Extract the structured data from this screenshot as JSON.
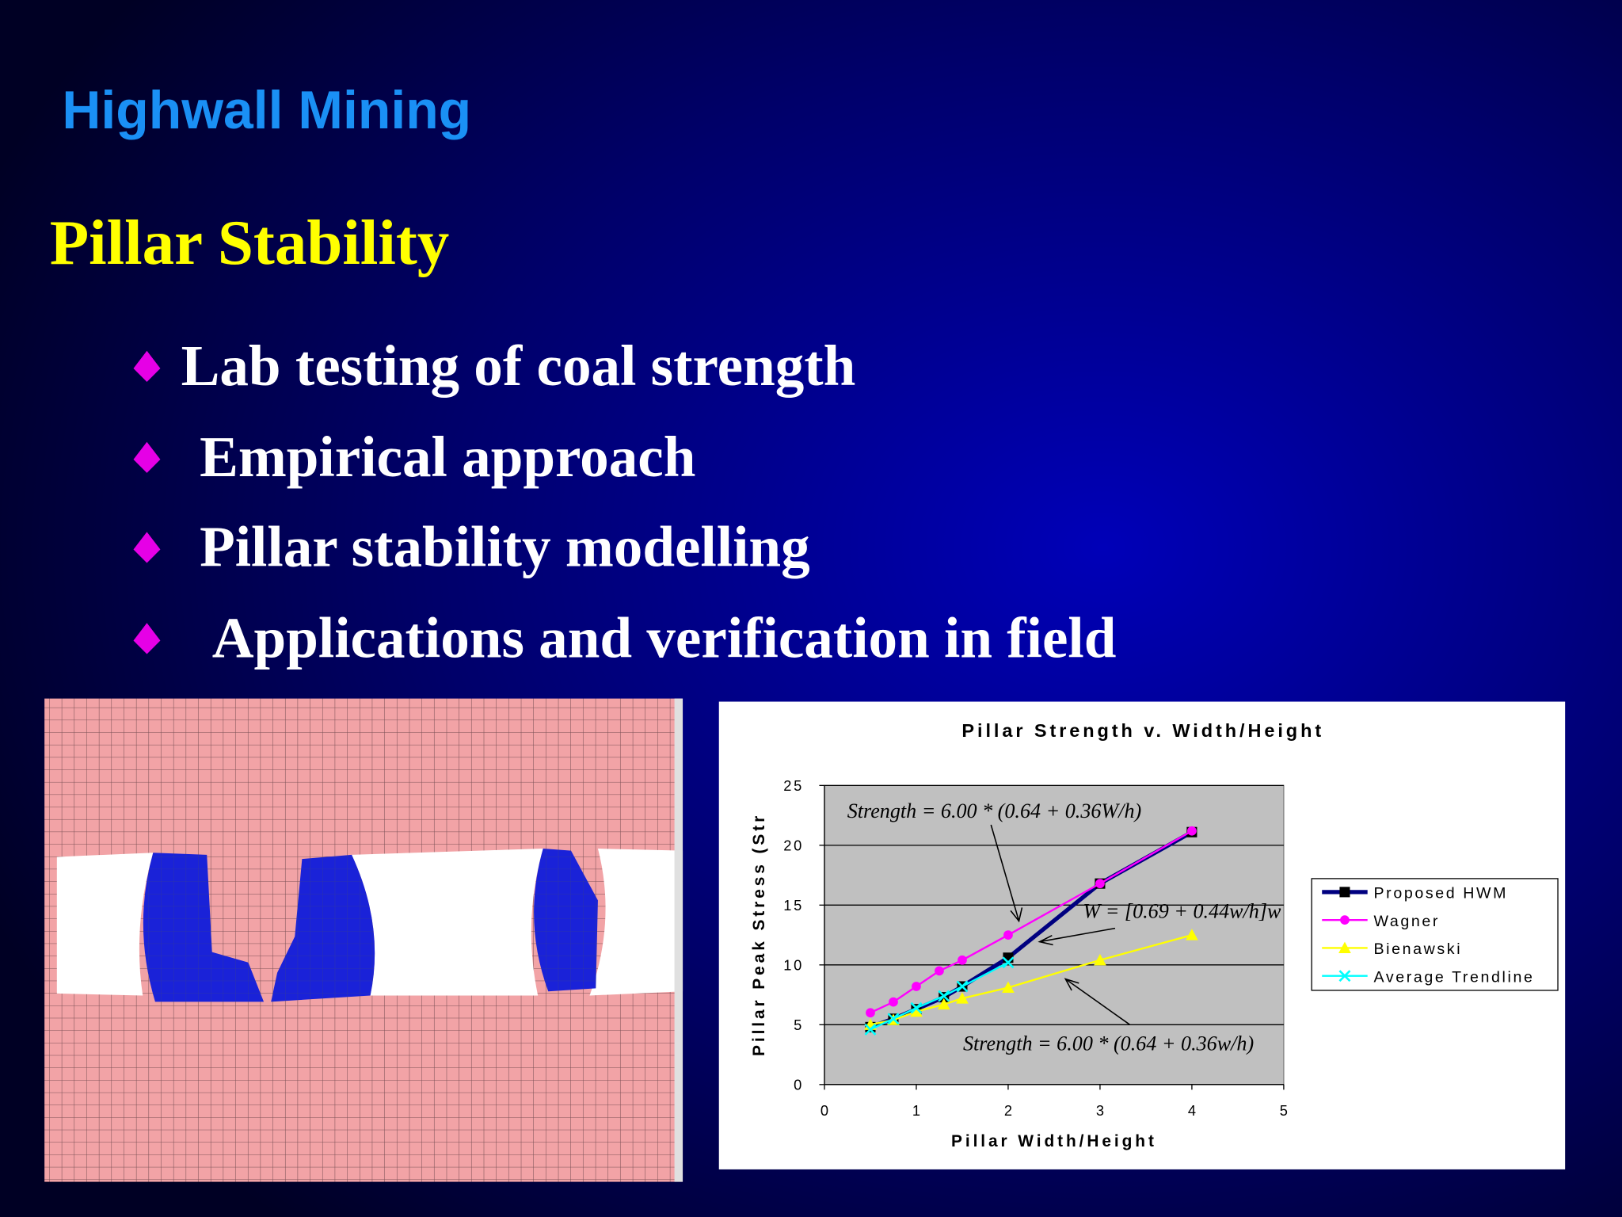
{
  "header": {
    "title": "Highwall Mining"
  },
  "heading": "Pillar Stability",
  "bullets": [
    "Lab testing of coal strength",
    "Empirical approach",
    "Pillar stability modelling",
    "Applications and verification in field"
  ],
  "chart_data": {
    "type": "line",
    "title": "Pillar Strength v. Width/Height",
    "x_label": "Pillar Width/Height",
    "y_label": "Pillar Peak Stress (Str",
    "xlim": [
      0,
      5
    ],
    "ylim": [
      0,
      25
    ],
    "xticks": [
      0,
      1,
      2,
      3,
      4,
      5
    ],
    "yticks": [
      0,
      5,
      10,
      15,
      20,
      25
    ],
    "grid": true,
    "legend": "right",
    "series": [
      {
        "name": "Proposed HWM",
        "color": "#000080",
        "marker": "square",
        "x": [
          0.5,
          0.75,
          1,
          1.3,
          1.5,
          2,
          3,
          4
        ],
        "values": [
          4.8,
          5.5,
          6.3,
          7.3,
          8.2,
          10.6,
          16.8,
          21.1
        ]
      },
      {
        "name": "Wagner",
        "color": "#ff00ff",
        "marker": "circle",
        "x": [
          0.5,
          0.75,
          1,
          1.25,
          1.5,
          2,
          3,
          4
        ],
        "values": [
          6.0,
          6.9,
          8.2,
          9.5,
          10.4,
          12.5,
          16.8,
          21.2
        ]
      },
      {
        "name": "Bienawski",
        "color": "#ffff00",
        "marker": "triangle",
        "x": [
          0.5,
          0.75,
          1,
          1.3,
          1.5,
          2,
          3,
          4
        ],
        "values": [
          5.0,
          5.4,
          6.1,
          6.7,
          7.2,
          8.1,
          10.4,
          12.5
        ]
      },
      {
        "name": "Average Trendline",
        "color": "#00ffff",
        "marker": "x",
        "x": [
          0.5,
          0.75,
          1,
          1.3,
          1.5,
          2
        ],
        "values": [
          4.6,
          5.5,
          6.4,
          7.4,
          8.2,
          10.2
        ]
      }
    ],
    "annotations": [
      "Strength = 6.00 * (0.64 + 0.36W/h)",
      "W = [0.69 + 0.44w/h]w",
      "Strength = 6.00 * (0.64 + 0.36w/h)"
    ]
  }
}
